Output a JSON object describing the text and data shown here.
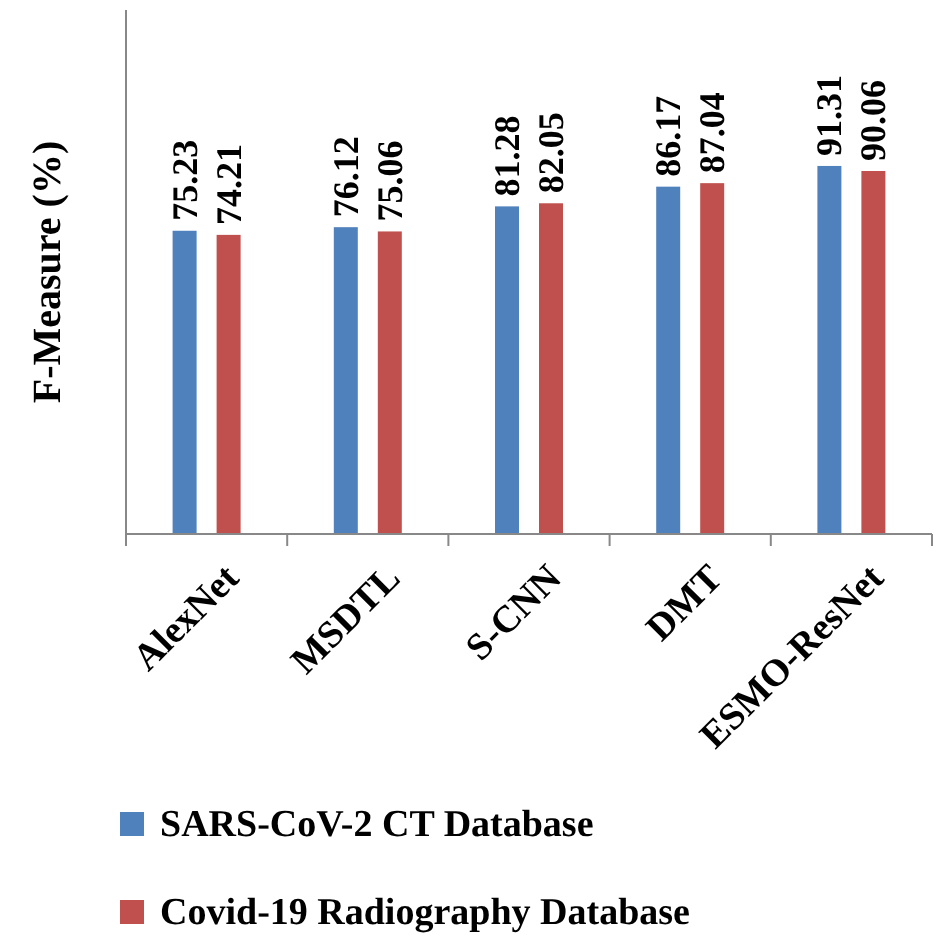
{
  "chart_data": {
    "type": "bar",
    "ylabel": "F-Measure (%)",
    "categories": [
      "AlexNet",
      "MSDTL",
      "S-CNN",
      "DMT",
      "ESMO-ResNet"
    ],
    "series": [
      {
        "name": "SARS-CoV-2 CT Database",
        "color": "#4f81bd",
        "values": [
          75.23,
          76.12,
          81.28,
          86.17,
          91.31
        ]
      },
      {
        "name": "Covid-19 Radiography Database",
        "color": "#c0504d",
        "values": [
          74.21,
          75.06,
          82.05,
          87.04,
          90.06
        ]
      }
    ],
    "ylim": [
      0,
      130
    ],
    "tick_labels": "x",
    "data_labels": true,
    "legend": "bottom",
    "grid": false
  }
}
